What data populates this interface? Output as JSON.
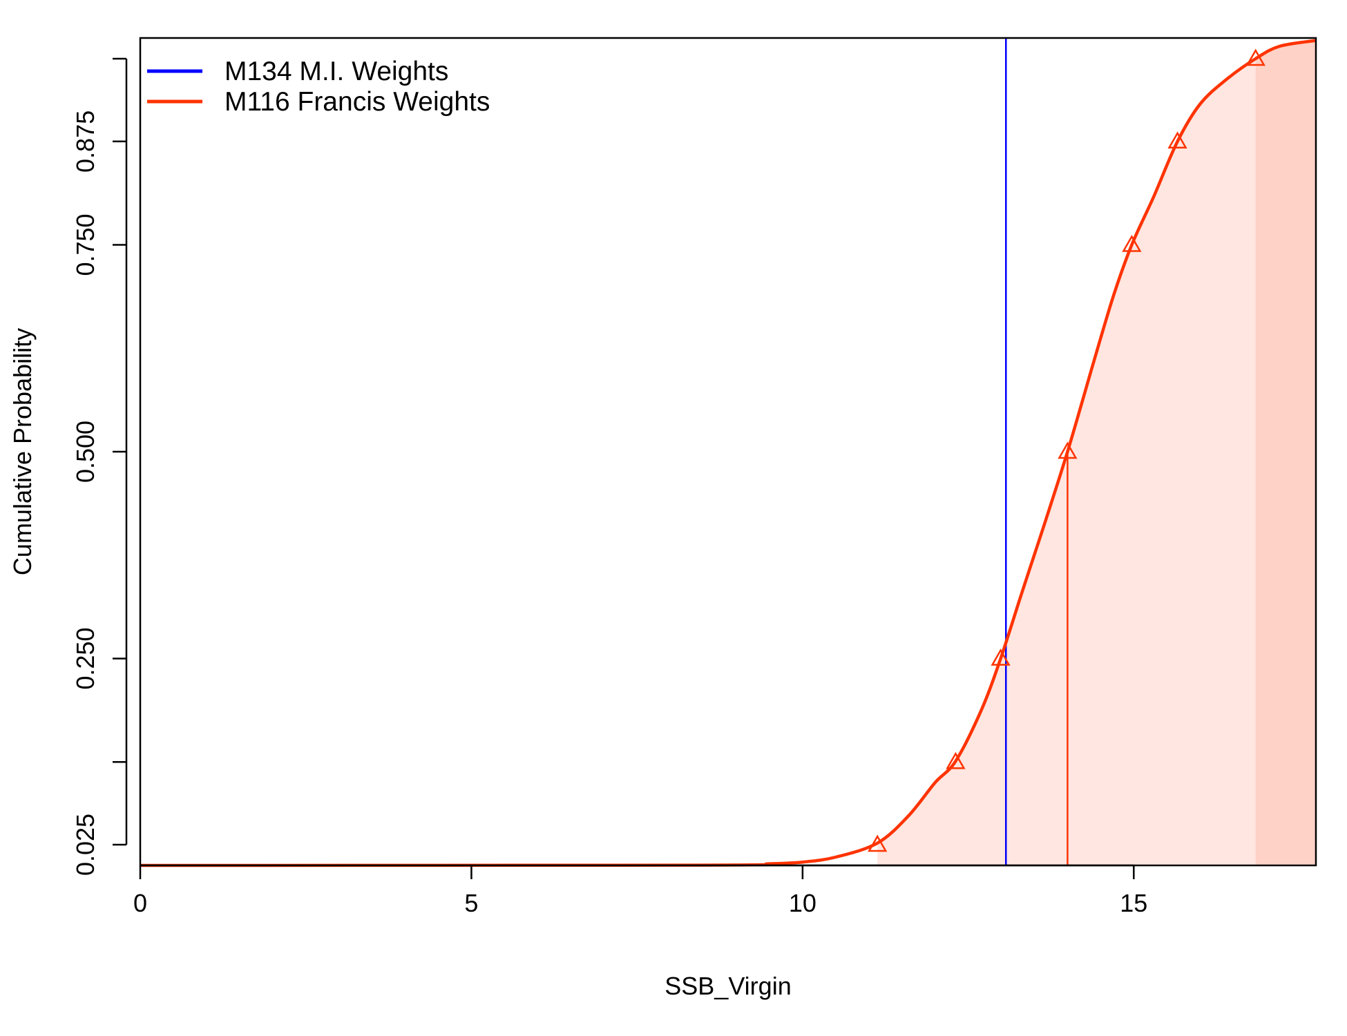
{
  "chart_data": {
    "type": "line",
    "title": "",
    "xlabel": "SSB_Virgin",
    "ylabel": "Cumulative Probability",
    "xlim": [
      0,
      17.75
    ],
    "ylim": [
      0,
      1
    ],
    "x_ticks": [
      0,
      5,
      10,
      15
    ],
    "x_tick_labels": [
      "0",
      "5",
      "10",
      "15"
    ],
    "y_ticks": [
      0.025,
      0.125,
      0.25,
      0.5,
      0.75,
      0.875,
      0.975
    ],
    "y_tick_labels": [
      "0.025",
      "",
      "0.250",
      "0.500",
      "0.750",
      "0.875",
      ""
    ],
    "grid": false,
    "legend_position": "top-left",
    "legend": [
      {
        "name": "M134 M.I. Weights",
        "color": "#0000ff"
      },
      {
        "name": "M116 Francis Weights",
        "color": "#ff3300"
      }
    ],
    "series": [
      {
        "name": "M116 Francis Weights",
        "color": "#ff3300",
        "distribution": "cumulative",
        "x": [
          0,
          8.5,
          9.5,
          10.0,
          10.5,
          11.13,
          11.6,
          12.0,
          12.31,
          12.7,
          12.99,
          13.3,
          13.6,
          14.0,
          14.4,
          14.7,
          14.97,
          15.3,
          15.66,
          16.0,
          16.4,
          16.84,
          17.2,
          17.75
        ],
        "y": [
          0,
          0.0003,
          0.002,
          0.004,
          0.01,
          0.027,
          0.06,
          0.1,
          0.126,
          0.188,
          0.25,
          0.327,
          0.4,
          0.5,
          0.61,
          0.69,
          0.75,
          0.808,
          0.875,
          0.92,
          0.95,
          0.975,
          0.99,
          0.997
        ]
      }
    ],
    "quantile_markers": {
      "series": "M116 Francis Weights",
      "marker": "triangle",
      "x": [
        11.13,
        12.31,
        12.99,
        14.0,
        14.97,
        15.66,
        16.84
      ],
      "y": [
        0.025,
        0.125,
        0.25,
        0.5,
        0.75,
        0.875,
        0.975
      ]
    },
    "median_line": {
      "series": "M116 Francis Weights",
      "x": 14.0,
      "y": 0.5
    },
    "shaded_bands": {
      "color": "#ff3300",
      "bands": [
        {
          "from": 11.13,
          "to": 16.84,
          "opacity": 0.12
        },
        {
          "from": 16.84,
          "to": 17.75,
          "opacity": 0.22
        }
      ]
    },
    "reference_lines": [
      {
        "name": "M134 M.I. Weights",
        "x": 13.07,
        "color": "#0000ff"
      }
    ]
  }
}
